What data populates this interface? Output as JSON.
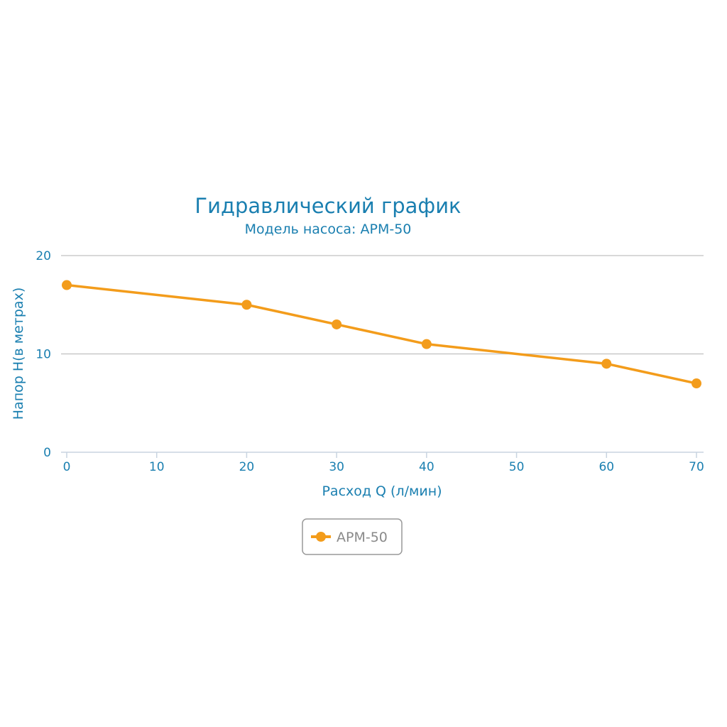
{
  "chart_data": {
    "type": "line",
    "title": "Гидравлический график",
    "subtitle": "Модель насоса: APM-50",
    "xlabel": "Расход Q (л/мин)",
    "ylabel": "Напор H(в метрах)",
    "x_ticks": [
      0,
      10,
      20,
      30,
      40,
      50,
      60,
      70
    ],
    "y_ticks": [
      0,
      10,
      20
    ],
    "xlim": [
      0,
      70
    ],
    "ylim": [
      0,
      20
    ],
    "grid": true,
    "legend_position": "bottom-center",
    "series": [
      {
        "name": "APM-50",
        "color": "#f39c1b",
        "x": [
          0,
          20,
          30,
          40,
          60,
          70
        ],
        "y": [
          17,
          15,
          13,
          11,
          9,
          7
        ]
      }
    ]
  },
  "colors": {
    "text": "#1a7fb0",
    "grid": "#c0c0c0",
    "axis": "#c8d4e0",
    "legend_border": "#999999",
    "legend_text": "#8a8a8a"
  }
}
